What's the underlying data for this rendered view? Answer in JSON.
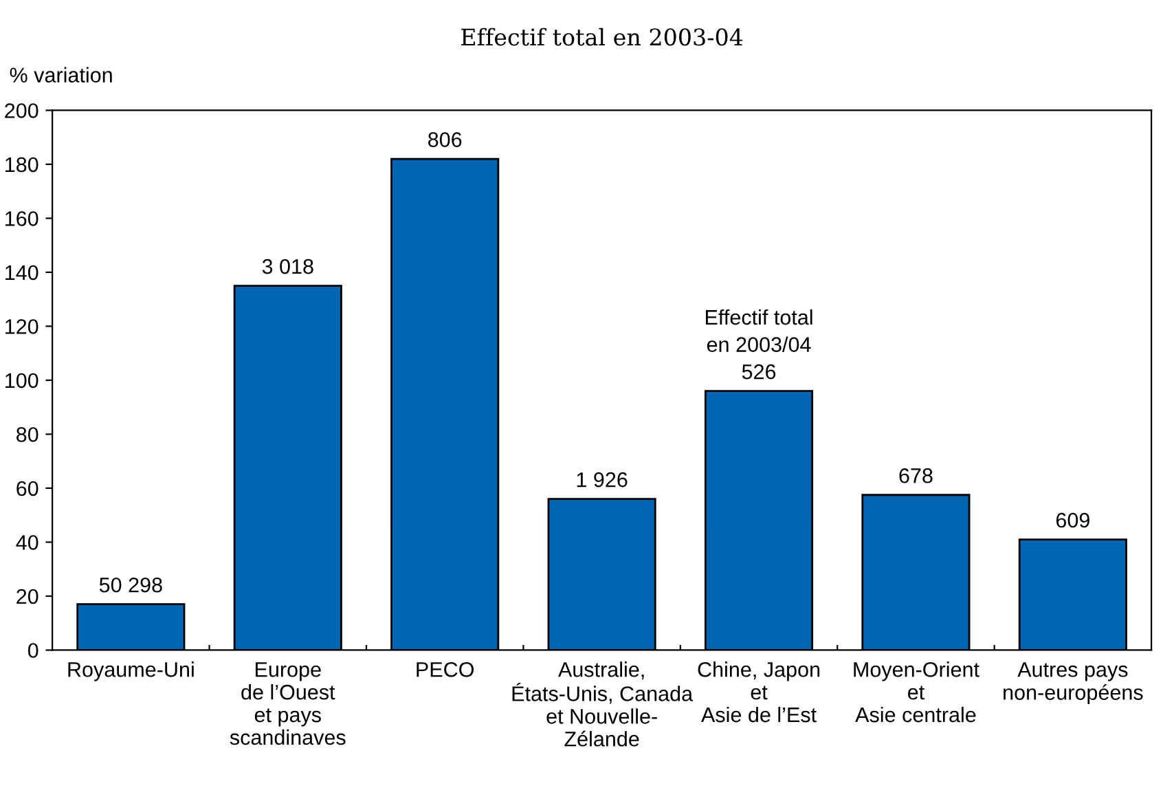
{
  "chart_data": {
    "type": "bar",
    "title": "Effectif total en 2003-04",
    "ylabel": "% variation",
    "categories": [
      "Royaume-Uni",
      "Europe\nde l’Ouest\net pays\nscandinaves",
      "PECO",
      "Australie,\nÉtats-Unis, Canada\net Nouvelle-\nZélande",
      "Chine, Japon\net\nAsie de l’Est",
      "Moyen-Orient\net\nAsie centrale",
      "Autres pays\nnon-européens"
    ],
    "values": [
      17,
      135,
      182,
      56,
      96,
      57.5,
      41
    ],
    "color": "#0066b3",
    "ylim": [
      0,
      200
    ],
    "yticks": [
      0,
      20,
      40,
      60,
      80,
      100,
      120,
      140,
      160,
      180,
      200
    ],
    "annotations": [
      {
        "text": "50 298",
        "x": "Royaume-Uni",
        "y": 17
      },
      {
        "text": "3 018",
        "x": "Europe\nde l’Ouest\net pays\nscandinaves",
        "y": 135
      },
      {
        "text": "806",
        "x": "PECO",
        "y": 182
      },
      {
        "text": "1 926",
        "x": "Australie,\nÉtats-Unis, Canada\net Nouvelle-\nZélande",
        "y": 56
      },
      {
        "text": "Effectif total\nen 2003/04\n526",
        "x": "Chine, Japon\net\nAsie de l’Est",
        "y": 96
      },
      {
        "text": "678",
        "x": "Moyen-Orient\net\nAsie centrale",
        "y": 57.5
      },
      {
        "text": "609",
        "x": "Autres pays\nnon-européens",
        "y": 41
      }
    ],
    "grid": false
  }
}
